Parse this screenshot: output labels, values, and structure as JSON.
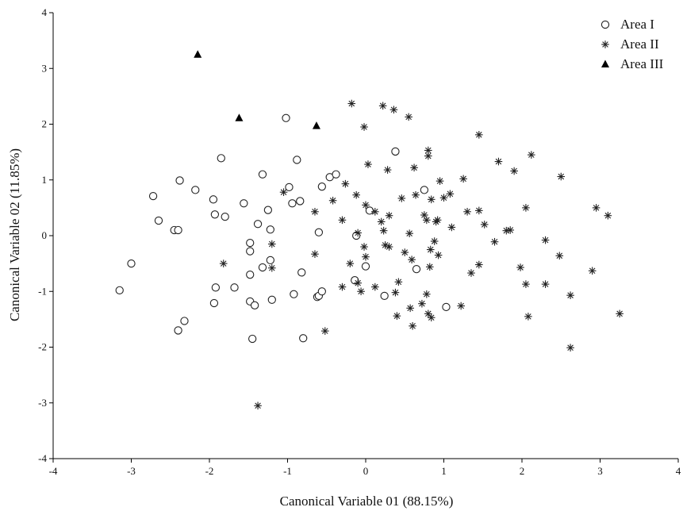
{
  "chart_data": {
    "type": "scatter",
    "xlabel": "Canonical Variable 01 (88.15%)",
    "ylabel": "Canonical Variable 02 (11.85%)",
    "xlim": [
      -4,
      4
    ],
    "ylim": [
      -4,
      4
    ],
    "x_ticks": [
      "-4",
      "-3",
      "-2",
      "-1",
      "0",
      "1",
      "2",
      "3",
      "4"
    ],
    "y_ticks": [
      "-4",
      "-3",
      "-2",
      "-1",
      "0",
      "1",
      "2",
      "3",
      "4"
    ],
    "grid": false,
    "legend_position": "top-right",
    "series": [
      {
        "name": "Area I",
        "marker": "open-circle",
        "points": [
          [
            -3.15,
            -0.98
          ],
          [
            -3.0,
            -0.5
          ],
          [
            -2.72,
            0.71
          ],
          [
            -2.65,
            0.27
          ],
          [
            -2.45,
            0.1
          ],
          [
            -2.4,
            0.1
          ],
          [
            -2.38,
            0.99
          ],
          [
            -2.4,
            -1.7
          ],
          [
            -2.32,
            -1.53
          ],
          [
            -2.18,
            0.82
          ],
          [
            -1.95,
            0.65
          ],
          [
            -1.93,
            0.38
          ],
          [
            -1.92,
            -0.93
          ],
          [
            -1.94,
            -1.21
          ],
          [
            -1.85,
            1.39
          ],
          [
            -1.8,
            0.34
          ],
          [
            -1.68,
            -0.93
          ],
          [
            -1.56,
            0.58
          ],
          [
            -1.48,
            -0.13
          ],
          [
            -1.48,
            -0.28
          ],
          [
            -1.48,
            -0.7
          ],
          [
            -1.48,
            -1.18
          ],
          [
            -1.45,
            -1.85
          ],
          [
            -1.42,
            -1.25
          ],
          [
            -1.38,
            0.21
          ],
          [
            -1.32,
            1.1
          ],
          [
            -1.32,
            -0.57
          ],
          [
            -1.25,
            0.46
          ],
          [
            -1.22,
            0.11
          ],
          [
            -1.22,
            -0.44
          ],
          [
            -1.2,
            -1.15
          ],
          [
            -1.02,
            2.11
          ],
          [
            -0.98,
            0.87
          ],
          [
            -0.94,
            0.58
          ],
          [
            -0.92,
            -1.05
          ],
          [
            -0.88,
            1.36
          ],
          [
            -0.84,
            0.62
          ],
          [
            -0.82,
            -0.66
          ],
          [
            -0.8,
            -1.84
          ],
          [
            -0.62,
            -1.1
          ],
          [
            -0.6,
            0.06
          ],
          [
            -0.6,
            -1.08
          ],
          [
            -0.56,
            0.88
          ],
          [
            -0.56,
            -1.0
          ],
          [
            -0.46,
            1.05
          ],
          [
            -0.38,
            1.1
          ],
          [
            -0.12,
            0.0
          ],
          [
            -0.14,
            -0.8
          ],
          [
            0.0,
            -0.55
          ],
          [
            0.05,
            0.45
          ],
          [
            0.24,
            -1.08
          ],
          [
            0.38,
            1.51
          ],
          [
            0.65,
            -0.6
          ],
          [
            0.75,
            0.82
          ],
          [
            1.03,
            -1.28
          ]
        ]
      },
      {
        "name": "Area II",
        "marker": "asterisk",
        "points": [
          [
            -1.82,
            -0.5
          ],
          [
            -1.38,
            -3.05
          ],
          [
            -1.2,
            -0.15
          ],
          [
            -1.2,
            -0.58
          ],
          [
            -1.05,
            0.78
          ],
          [
            -0.65,
            0.43
          ],
          [
            -0.65,
            -0.33
          ],
          [
            -0.52,
            -1.71
          ],
          [
            -0.42,
            0.63
          ],
          [
            -0.3,
            0.28
          ],
          [
            -0.3,
            -0.92
          ],
          [
            -0.26,
            0.93
          ],
          [
            -0.18,
            2.37
          ],
          [
            -0.2,
            -0.5
          ],
          [
            -0.12,
            0.73
          ],
          [
            -0.1,
            0.05
          ],
          [
            -0.1,
            -0.85
          ],
          [
            -0.06,
            -1.0
          ],
          [
            -0.02,
            1.95
          ],
          [
            -0.02,
            -0.2
          ],
          [
            0.0,
            -0.38
          ],
          [
            0.0,
            0.55
          ],
          [
            0.03,
            1.28
          ],
          [
            0.12,
            0.43
          ],
          [
            0.12,
            -0.92
          ],
          [
            0.2,
            0.25
          ],
          [
            0.22,
            2.33
          ],
          [
            0.23,
            0.09
          ],
          [
            0.25,
            -0.17
          ],
          [
            0.28,
            1.18
          ],
          [
            0.3,
            -0.2
          ],
          [
            0.3,
            0.36
          ],
          [
            0.36,
            2.26
          ],
          [
            0.38,
            -1.02
          ],
          [
            0.4,
            -1.44
          ],
          [
            0.42,
            -0.83
          ],
          [
            0.46,
            0.67
          ],
          [
            0.5,
            -0.3
          ],
          [
            0.55,
            2.13
          ],
          [
            0.56,
            0.04
          ],
          [
            0.57,
            -1.3
          ],
          [
            0.59,
            -0.43
          ],
          [
            0.6,
            -1.62
          ],
          [
            0.62,
            1.22
          ],
          [
            0.64,
            0.73
          ],
          [
            0.72,
            -1.22
          ],
          [
            0.75,
            0.37
          ],
          [
            0.78,
            0.28
          ],
          [
            0.78,
            -1.05
          ],
          [
            0.8,
            1.43
          ],
          [
            0.8,
            1.53
          ],
          [
            0.8,
            -1.4
          ],
          [
            0.82,
            -0.56
          ],
          [
            0.83,
            -0.25
          ],
          [
            0.84,
            0.65
          ],
          [
            0.84,
            -1.47
          ],
          [
            0.88,
            -0.1
          ],
          [
            0.9,
            0.25
          ],
          [
            0.92,
            0.28
          ],
          [
            0.93,
            -0.35
          ],
          [
            0.95,
            0.98
          ],
          [
            1.0,
            0.68
          ],
          [
            1.08,
            0.75
          ],
          [
            1.1,
            0.15
          ],
          [
            1.22,
            -1.26
          ],
          [
            1.25,
            1.02
          ],
          [
            1.3,
            0.43
          ],
          [
            1.35,
            -0.67
          ],
          [
            1.45,
            0.45
          ],
          [
            1.45,
            1.81
          ],
          [
            1.45,
            -0.52
          ],
          [
            1.52,
            0.2
          ],
          [
            1.65,
            -0.11
          ],
          [
            1.7,
            1.33
          ],
          [
            1.8,
            0.09
          ],
          [
            1.85,
            0.1
          ],
          [
            1.9,
            1.16
          ],
          [
            1.98,
            -0.57
          ],
          [
            2.05,
            0.5
          ],
          [
            2.05,
            -0.87
          ],
          [
            2.08,
            -1.45
          ],
          [
            2.12,
            1.45
          ],
          [
            2.3,
            -0.08
          ],
          [
            2.3,
            -0.87
          ],
          [
            2.48,
            -0.36
          ],
          [
            2.5,
            1.06
          ],
          [
            2.62,
            -1.07
          ],
          [
            2.62,
            -2.01
          ],
          [
            2.9,
            -0.63
          ],
          [
            2.95,
            0.5
          ],
          [
            3.1,
            0.36
          ],
          [
            3.25,
            -1.4
          ]
        ]
      },
      {
        "name": "Area III",
        "marker": "filled-triangle",
        "points": [
          [
            -2.15,
            3.25
          ],
          [
            -1.62,
            2.11
          ],
          [
            -0.63,
            1.97
          ]
        ]
      }
    ]
  }
}
